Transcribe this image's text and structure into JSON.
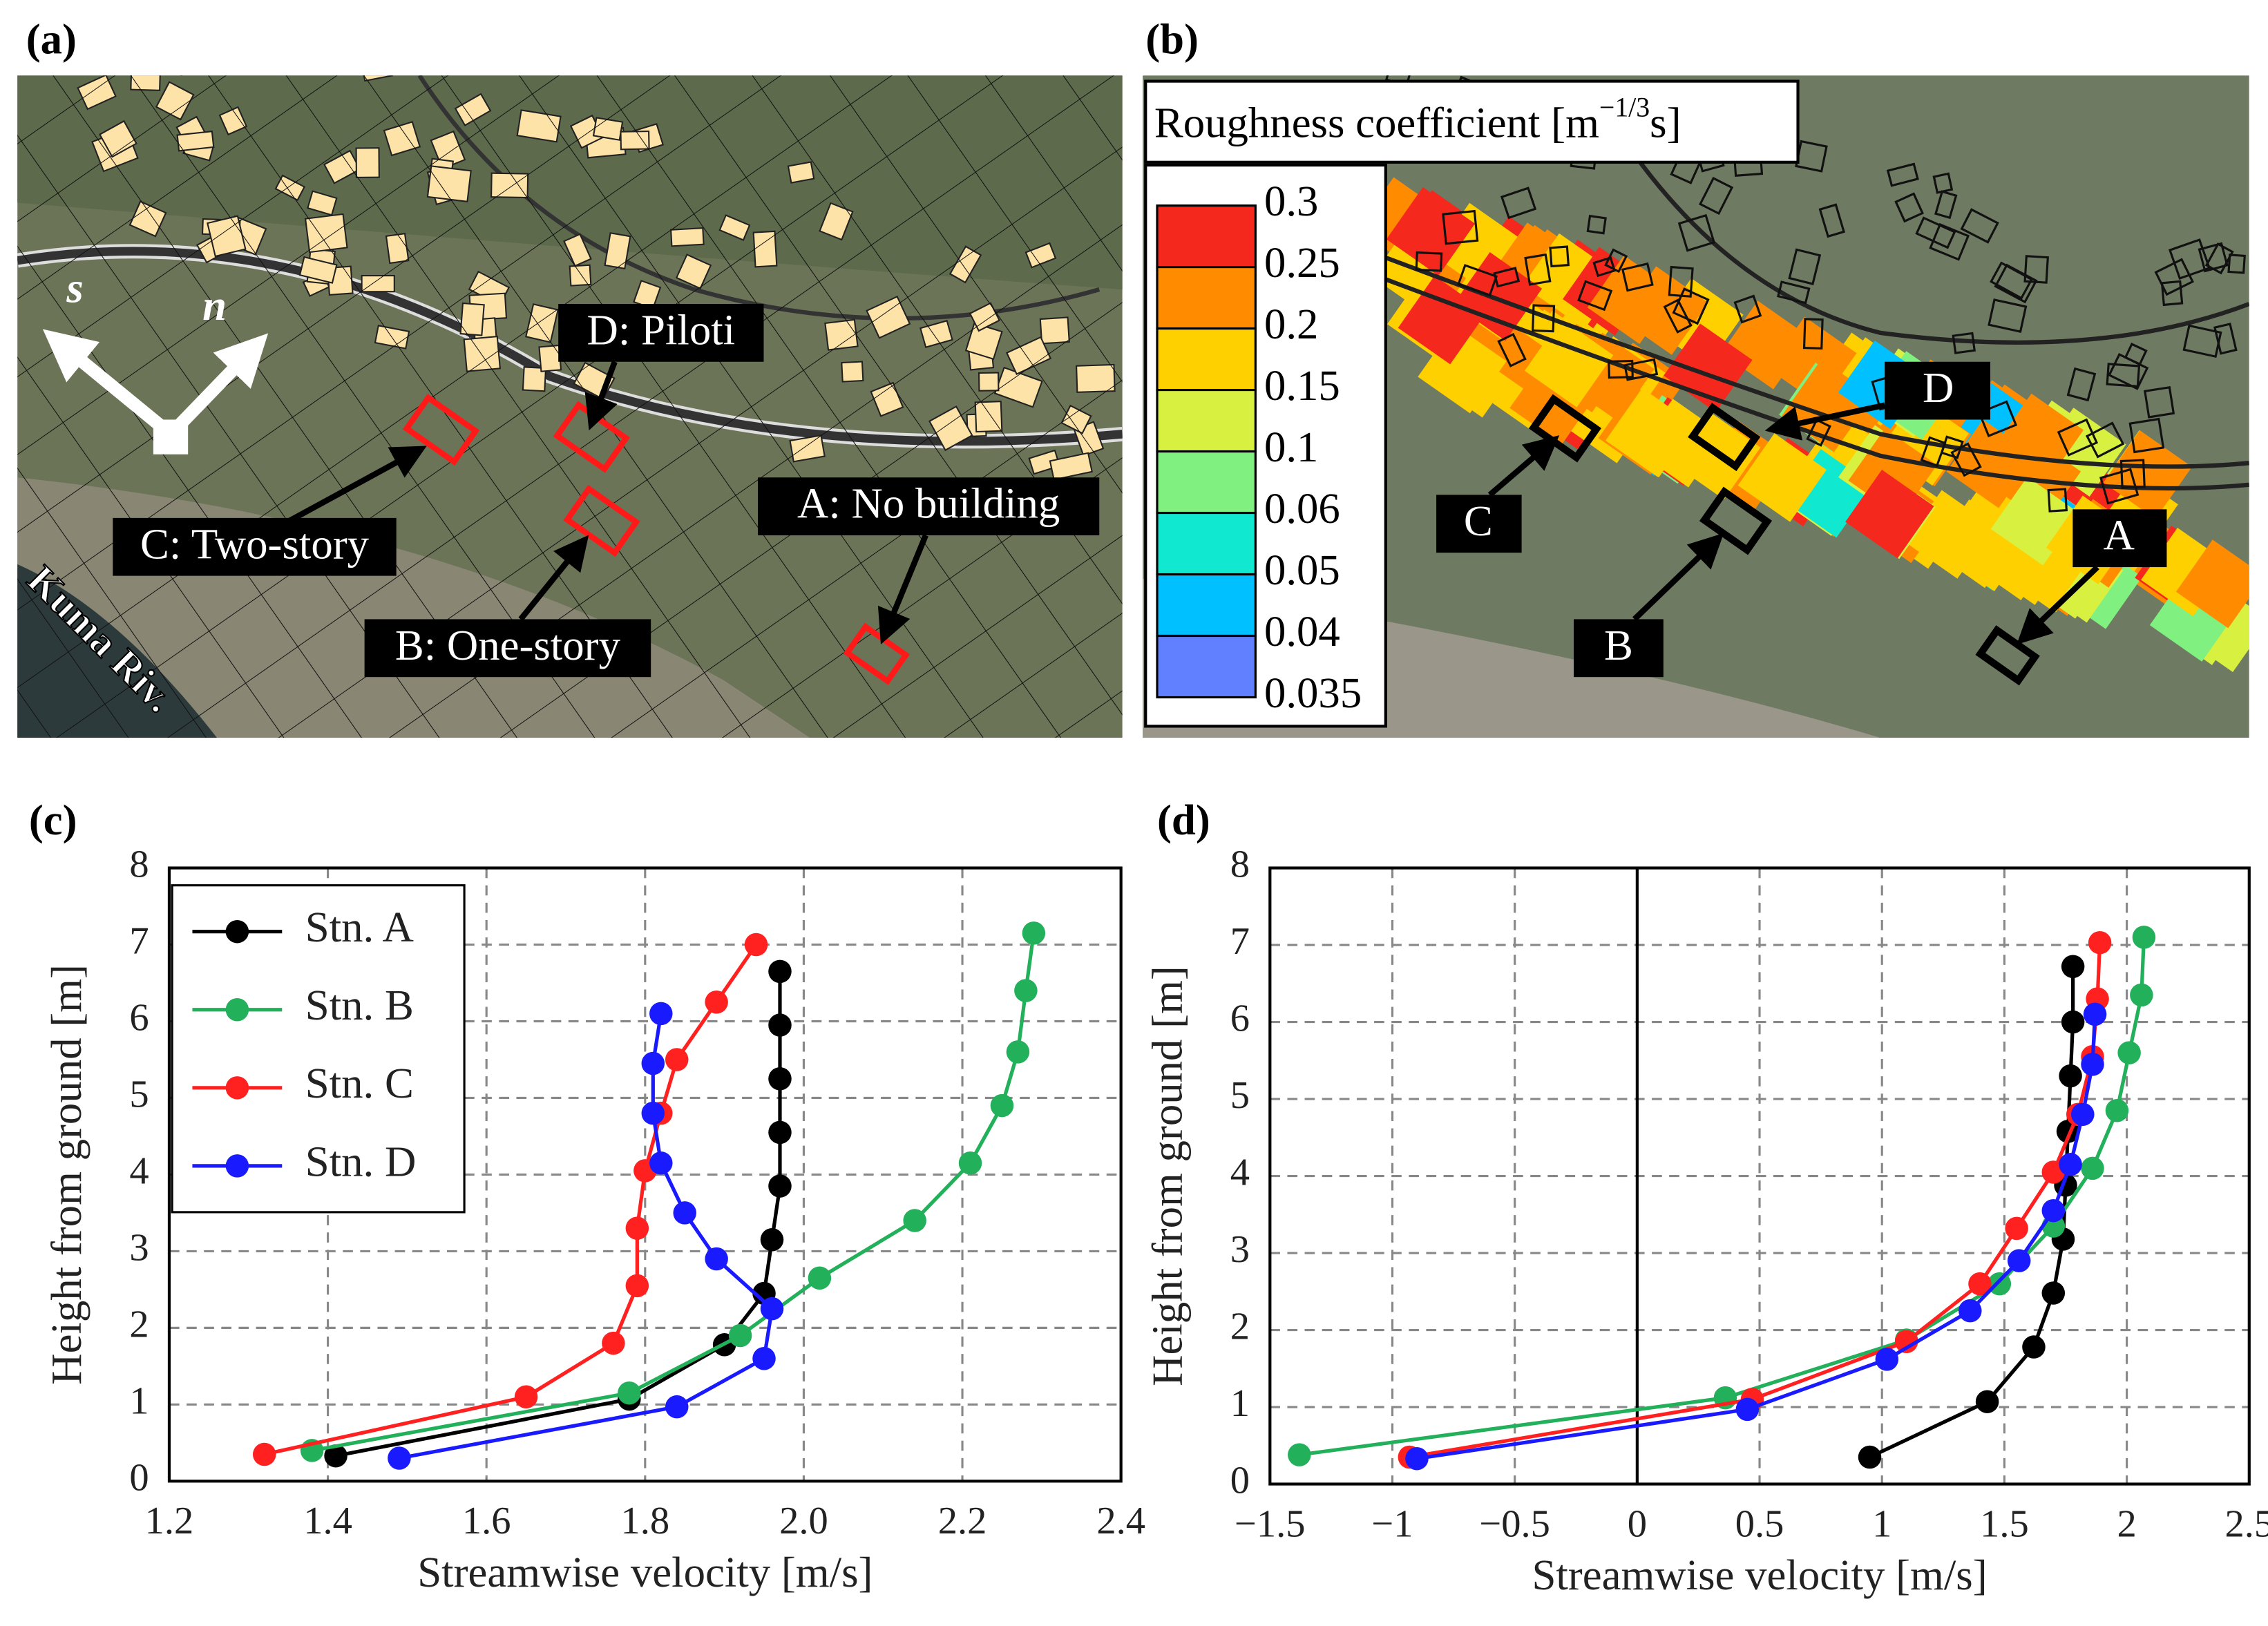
{
  "panels": {
    "a": {
      "label": "(a)",
      "axes": [
        "s",
        "n"
      ],
      "stations": [
        "D: Piloti",
        "C: Two-story",
        "A: No building",
        "B: One-story"
      ],
      "river": "Kuma Riv."
    },
    "b": {
      "label": "(b)",
      "legend_title": {
        "text": "Roughness coefficient [m",
        "superscript": "−1/3",
        "suffix": "s]"
      },
      "colorbar": {
        "ticks": [
          0.3,
          0.25,
          0.2,
          0.15,
          0.1,
          0.06,
          0.05,
          0.04,
          0.035
        ],
        "colors": [
          "#f5281e",
          "#ff8c00",
          "#ffd000",
          "#d8f040",
          "#80f080",
          "#10e8d0",
          "#00c0ff",
          "#6080ff"
        ]
      },
      "stations": [
        "D",
        "C",
        "B",
        "A"
      ]
    }
  },
  "chart_data": [
    {
      "type": "line",
      "panel_label": "(c)",
      "xlabel": "Streamwise velocity [m/s]",
      "ylabel": "Height from ground [m]",
      "xlim": [
        1.2,
        2.4
      ],
      "xticks": [
        1.2,
        1.4,
        1.6,
        1.8,
        {
          "value": 2,
          "label": "2.0"
        },
        2.2,
        2.4
      ],
      "ylim": [
        0,
        8
      ],
      "yticks": [
        0,
        1,
        2,
        3,
        4,
        5,
        6,
        7,
        8
      ],
      "grid": true,
      "legend": "upper left",
      "marker": "circle",
      "series": [
        {
          "name": "Stn. A",
          "color": "#000000",
          "x": [
            1.41,
            1.78,
            1.9,
            1.95,
            1.96,
            1.97,
            1.97,
            1.97,
            1.97,
            1.97
          ],
          "values": [
            0.33,
            1.07,
            1.78,
            2.45,
            3.15,
            3.85,
            4.55,
            5.25,
            5.95,
            6.65
          ]
        },
        {
          "name": "Stn. B",
          "color": "#22b05a",
          "x": [
            1.38,
            1.78,
            1.92,
            2.02,
            2.14,
            2.21,
            2.25,
            2.27,
            2.28,
            2.29
          ],
          "values": [
            0.4,
            1.15,
            1.9,
            2.65,
            3.4,
            4.15,
            4.9,
            5.6,
            6.4,
            7.15
          ]
        },
        {
          "name": "Stn. C",
          "color": "#ff2020",
          "x": [
            1.32,
            1.65,
            1.76,
            1.79,
            1.79,
            1.8,
            1.82,
            1.84,
            1.89,
            1.94
          ],
          "values": [
            0.35,
            1.1,
            1.8,
            2.55,
            3.3,
            4.05,
            4.8,
            5.5,
            6.25,
            7.0
          ]
        },
        {
          "name": "Stn. D",
          "color": "#1a1aff",
          "x": [
            1.49,
            1.84,
            1.95,
            1.96,
            1.89,
            1.85,
            1.82,
            1.81,
            1.81,
            1.82
          ],
          "values": [
            0.3,
            0.97,
            1.6,
            2.25,
            2.9,
            3.5,
            4.15,
            4.8,
            5.45,
            6.1
          ]
        }
      ]
    },
    {
      "type": "line",
      "panel_label": "(d)",
      "xlabel": "Streamwise velocity [m/s]",
      "ylabel": "Height from ground [m]",
      "xlim": [
        -1.5,
        2.5
      ],
      "xticks": [
        {
          "value": -1.5,
          "label": "−1.5"
        },
        {
          "value": -1,
          "label": "−1"
        },
        {
          "value": -0.5,
          "label": "−0.5"
        },
        0,
        0.5,
        1,
        1.5,
        2,
        2.5
      ],
      "ylim": [
        0,
        8
      ],
      "yticks": [
        0,
        1,
        2,
        3,
        4,
        5,
        6,
        7,
        8
      ],
      "grid": true,
      "zeroline": true,
      "marker": "circle",
      "series": [
        {
          "color": "#000000",
          "x": [
            0.95,
            1.43,
            1.62,
            1.7,
            1.74,
            1.75,
            1.76,
            1.77,
            1.78,
            1.78
          ],
          "values": [
            0.35,
            1.07,
            1.78,
            2.48,
            3.18,
            3.88,
            4.58,
            5.3,
            6.0,
            6.72
          ]
        },
        {
          "color": "#22b05a",
          "x": [
            -1.38,
            0.36,
            1.1,
            1.48,
            1.7,
            1.86,
            1.96,
            2.01,
            2.06,
            2.07
          ],
          "values": [
            0.38,
            1.12,
            1.87,
            2.6,
            3.35,
            4.1,
            4.85,
            5.6,
            6.35,
            7.1
          ]
        },
        {
          "color": "#ff2020",
          "x": [
            -0.93,
            0.47,
            1.1,
            1.4,
            1.55,
            1.7,
            1.8,
            1.86,
            1.88,
            1.89
          ],
          "values": [
            0.35,
            1.1,
            1.85,
            2.6,
            3.32,
            4.05,
            4.8,
            5.55,
            6.3,
            7.03
          ]
        },
        {
          "color": "#1a1aff",
          "x": [
            -0.9,
            0.45,
            1.02,
            1.36,
            1.56,
            1.7,
            1.77,
            1.82,
            1.86,
            1.87
          ],
          "values": [
            0.33,
            0.97,
            1.62,
            2.25,
            2.9,
            3.55,
            4.15,
            4.8,
            5.45,
            6.1
          ]
        }
      ]
    }
  ]
}
